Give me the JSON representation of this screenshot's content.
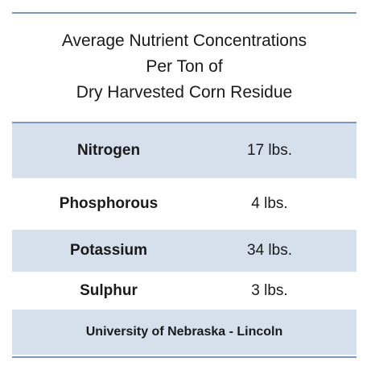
{
  "title": {
    "lines": [
      "Average Nutrient Concentrations",
      "Per Ton of",
      "Dry Harvested Corn Residue"
    ]
  },
  "rows": [
    {
      "nutrient": "Nitrogen",
      "amount": "17 lbs."
    },
    {
      "nutrient": "Phosphorous",
      "amount": "4 lbs."
    },
    {
      "nutrient": "Potassium",
      "amount": "34 lbs."
    },
    {
      "nutrient": "Sulphur",
      "amount": "3 lbs."
    }
  ],
  "footer": {
    "source": "University of Nebraska - Lincoln"
  },
  "colors": {
    "rule": "#7a99bf",
    "shaded_row": "#d6e0ec"
  }
}
